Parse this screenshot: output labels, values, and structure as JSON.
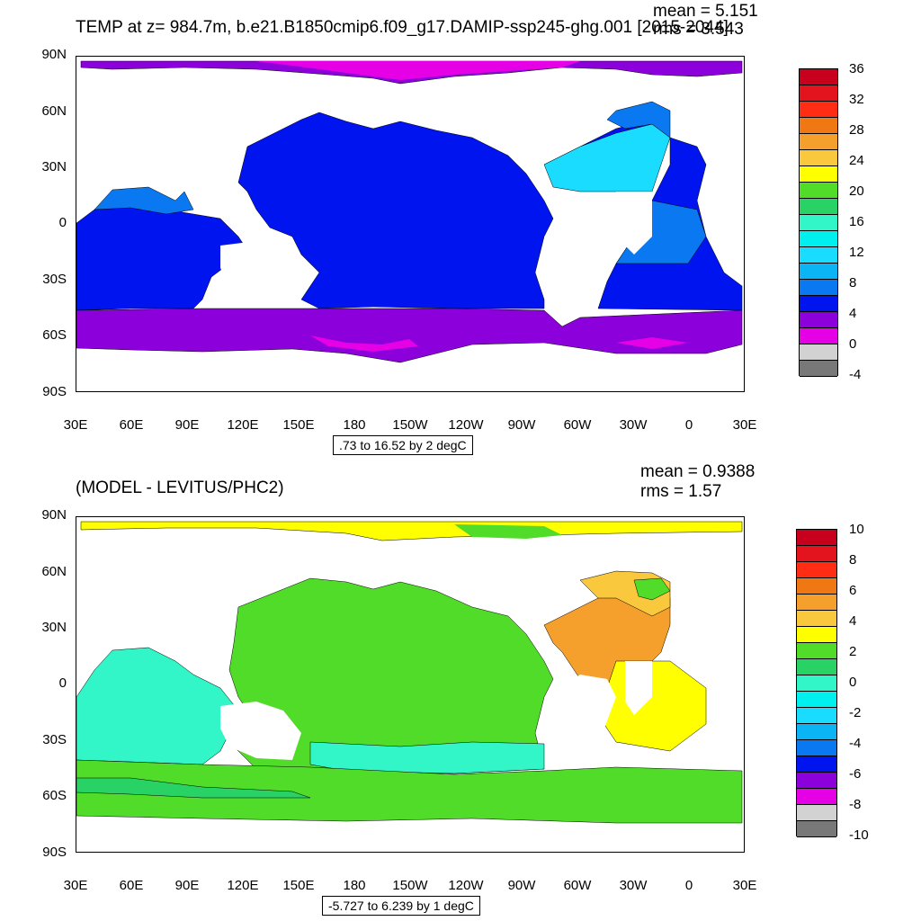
{
  "panels": [
    {
      "title": "TEMP at z= 984.7m, b.e21.B1850cmip6.f09_g17.DAMIP-ssp245-ghg.001 [2015-2044]",
      "mean": "mean = 5.151",
      "rms": "rms = 3.543",
      "contour_note": ".73 to 16.52 by 2 degC",
      "colorbar": {
        "labels": [
          "36",
          "32",
          "28",
          "24",
          "20",
          "16",
          "12",
          "8",
          "4",
          "0",
          "-4"
        ],
        "colors": [
          "#c8001e",
          "#e4141e",
          "#ff2d14",
          "#f07814",
          "#f5a02d",
          "#fac83c",
          "#ffff00",
          "#50dc28",
          "#28d264",
          "#32f5c8",
          "#00f0f0",
          "#19dcff",
          "#0ab4f5",
          "#0a78f0",
          "#0014f0",
          "#8c00dc",
          "#e600e6",
          "#d2d2d2",
          "#787878"
        ]
      }
    },
    {
      "title": "(MODEL - LEVITUS/PHC2)",
      "mean": "mean = 0.9388",
      "rms": "rms = 1.57",
      "contour_note": "-5.727 to 6.239 by 1 degC",
      "colorbar": {
        "labels": [
          "10",
          "8",
          "6",
          "4",
          "2",
          "0",
          "-2",
          "-4",
          "-6",
          "-8",
          "-10"
        ],
        "colors": [
          "#c8001e",
          "#e4141e",
          "#ff2d14",
          "#f07814",
          "#f5a02d",
          "#fac83c",
          "#ffff00",
          "#50dc28",
          "#28d264",
          "#32f5c8",
          "#00f0f0",
          "#19dcff",
          "#0ab4f5",
          "#0a78f0",
          "#0014f0",
          "#8c00dc",
          "#e600e6",
          "#d2d2d2",
          "#787878"
        ]
      }
    }
  ],
  "axes": {
    "lat_labels": [
      "90N",
      "60N",
      "30N",
      "0",
      "30S",
      "60S",
      "90S"
    ],
    "lon_labels": [
      "30E",
      "60E",
      "90E",
      "120E",
      "150E",
      "180",
      "150W",
      "120W",
      "90W",
      "60W",
      "30W",
      "0",
      "30E"
    ]
  }
}
